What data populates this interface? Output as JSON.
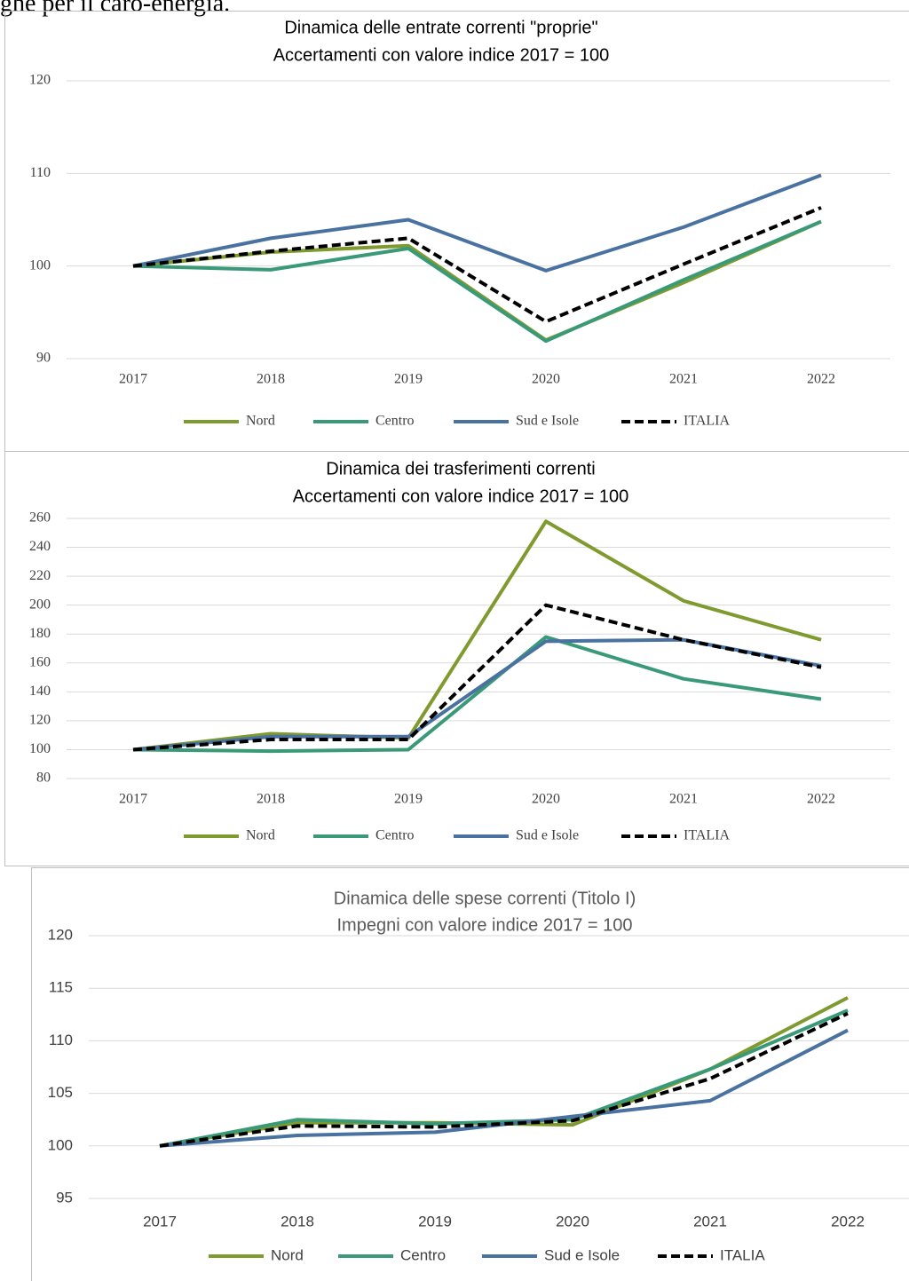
{
  "header_text": "ghe per il caro-energia.",
  "chart_data": [
    {
      "type": "line",
      "title": "Dinamica delle entrate correnti \"proprie\"",
      "subtitle": "Accertamenti con valore indice 2017 = 100",
      "categories": [
        "2017",
        "2018",
        "2019",
        "2020",
        "2021",
        "2022"
      ],
      "series": [
        {
          "name": "Nord",
          "color": "#7f9a2e",
          "values": [
            100,
            101.5,
            102.2,
            92,
            98.2,
            104.8
          ]
        },
        {
          "name": "Centro",
          "color": "#3a9a78",
          "values": [
            100,
            99.6,
            101.9,
            91.9,
            98.5,
            104.8
          ]
        },
        {
          "name": "Sud e Isole",
          "color": "#4a72a0",
          "values": [
            100,
            103,
            105,
            99.5,
            104.2,
            109.8
          ]
        },
        {
          "name": "ITALIA",
          "color": "#000000",
          "dashed": true,
          "values": [
            100,
            101.6,
            103,
            94,
            100.2,
            106.3
          ]
        }
      ],
      "ylim": [
        90,
        120
      ],
      "yticks": [
        90,
        100,
        110,
        120
      ],
      "grid": true,
      "legend": "bottom"
    },
    {
      "type": "line",
      "title": "Dinamica dei trasferimenti correnti",
      "subtitle": "Accertamenti con valore indice 2017 = 100",
      "categories": [
        "2017",
        "2018",
        "2019",
        "2020",
        "2021",
        "2022"
      ],
      "series": [
        {
          "name": "Nord",
          "color": "#7f9a2e",
          "values": [
            100,
            111,
            108,
            258,
            203,
            176
          ]
        },
        {
          "name": "Centro",
          "color": "#3a9a78",
          "values": [
            100,
            99,
            100,
            178,
            149,
            135
          ]
        },
        {
          "name": "Sud e Isole",
          "color": "#4a72a0",
          "values": [
            100,
            109,
            109,
            175,
            176,
            158
          ]
        },
        {
          "name": "ITALIA",
          "color": "#000000",
          "dashed": true,
          "values": [
            100,
            107,
            107,
            200,
            176,
            157
          ]
        }
      ],
      "ylim": [
        80,
        260
      ],
      "yticks": [
        80,
        100,
        120,
        140,
        160,
        180,
        200,
        220,
        240,
        260
      ],
      "grid": true,
      "legend": "bottom"
    },
    {
      "type": "line",
      "title": "Dinamica delle spese correnti (Titolo I)",
      "subtitle": "Impegni con valore indice 2017 = 100",
      "categories": [
        "2017",
        "2018",
        "2019",
        "2020",
        "2021",
        "2022"
      ],
      "series": [
        {
          "name": "Nord",
          "color": "#7f9a2e",
          "values": [
            100,
            102.2,
            102.2,
            102,
            107.3,
            114.1
          ]
        },
        {
          "name": "Centro",
          "color": "#3a9a78",
          "values": [
            100,
            102.5,
            102.1,
            102.5,
            107.3,
            112.9
          ]
        },
        {
          "name": "Sud e Isole",
          "color": "#4a72a0",
          "values": [
            100,
            101,
            101.3,
            102.8,
            104.3,
            111
          ]
        },
        {
          "name": "ITALIA",
          "color": "#000000",
          "dashed": true,
          "values": [
            100,
            101.9,
            101.8,
            102.4,
            106.4,
            112.6
          ]
        }
      ],
      "ylim": [
        95,
        120
      ],
      "yticks": [
        95,
        100,
        105,
        110,
        115,
        120
      ],
      "grid": true,
      "legend": "bottom"
    }
  ]
}
